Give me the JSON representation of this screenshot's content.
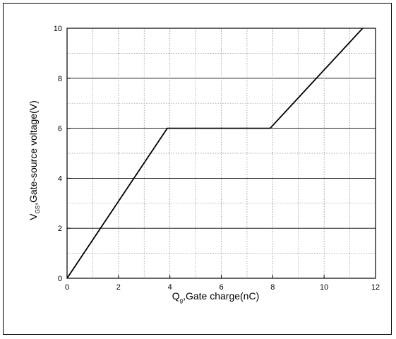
{
  "chart_data": {
    "type": "line",
    "title": "",
    "xlabel": {
      "main": "Q",
      "sub": "g",
      "rest": ",Gate charge(nC)"
    },
    "ylabel": {
      "main": "V",
      "sub": "GS",
      "rest": ",Gate-source voltage(V)"
    },
    "xlim": [
      0,
      12
    ],
    "ylim": [
      0,
      10
    ],
    "xticks": [
      0,
      2,
      4,
      6,
      8,
      10,
      12
    ],
    "yticks": [
      0,
      2,
      4,
      6,
      8,
      10
    ],
    "xtick_labels": [
      "0",
      "2",
      "4",
      "6",
      "8",
      "10",
      "12"
    ],
    "ytick_labels": [
      "0",
      "2",
      "4",
      "6",
      "8",
      "10"
    ],
    "grid": true,
    "grid_minor": true,
    "series": [
      {
        "x": [
          0,
          3.9,
          7.9,
          11.5
        ],
        "y": [
          0,
          6,
          6,
          10
        ]
      }
    ],
    "colors": {
      "line": "#000000",
      "grid_major": "#000000",
      "grid_minor": "#888888"
    }
  }
}
